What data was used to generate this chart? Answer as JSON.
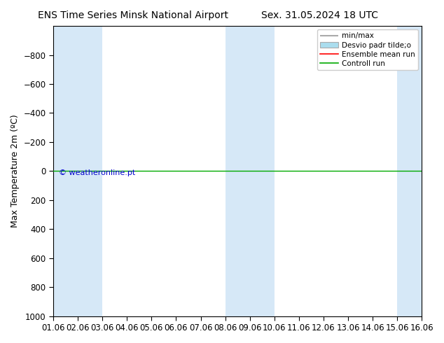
{
  "title_left": "ENS Time Series Minsk National Airport",
  "title_right": "Sex. 31.05.2024 18 UTC",
  "ylabel": "Max Temperature 2m (ºC)",
  "ylim_bottom": 1000,
  "ylim_top": -1000,
  "yticks": [
    -800,
    -600,
    -400,
    -200,
    0,
    200,
    400,
    600,
    800,
    1000
  ],
  "xlim_start": 0,
  "xlim_end": 15,
  "xtick_labels": [
    "01.06",
    "02.06",
    "03.06",
    "04.06",
    "05.06",
    "06.06",
    "07.06",
    "08.06",
    "09.06",
    "10.06",
    "11.06",
    "12.06",
    "13.06",
    "14.06",
    "15.06",
    "16.06"
  ],
  "shaded_intervals": [
    [
      0,
      1
    ],
    [
      1,
      2
    ],
    [
      7,
      8
    ],
    [
      8,
      9
    ],
    [
      14,
      15
    ]
  ],
  "band_color": "#d6e8f7",
  "control_run_y": 0,
  "control_run_color": "#00aa00",
  "ensemble_mean_color": "#ff0000",
  "min_max_color": "#aaaaaa",
  "min_max_line_color": "#88ccdd",
  "std_dev_color": "#aaddee",
  "watermark_text": "© weatheronline.pt",
  "watermark_color": "#0000cc",
  "background_color": "#ffffff",
  "title_fontsize": 10,
  "axis_fontsize": 9,
  "tick_fontsize": 8.5
}
